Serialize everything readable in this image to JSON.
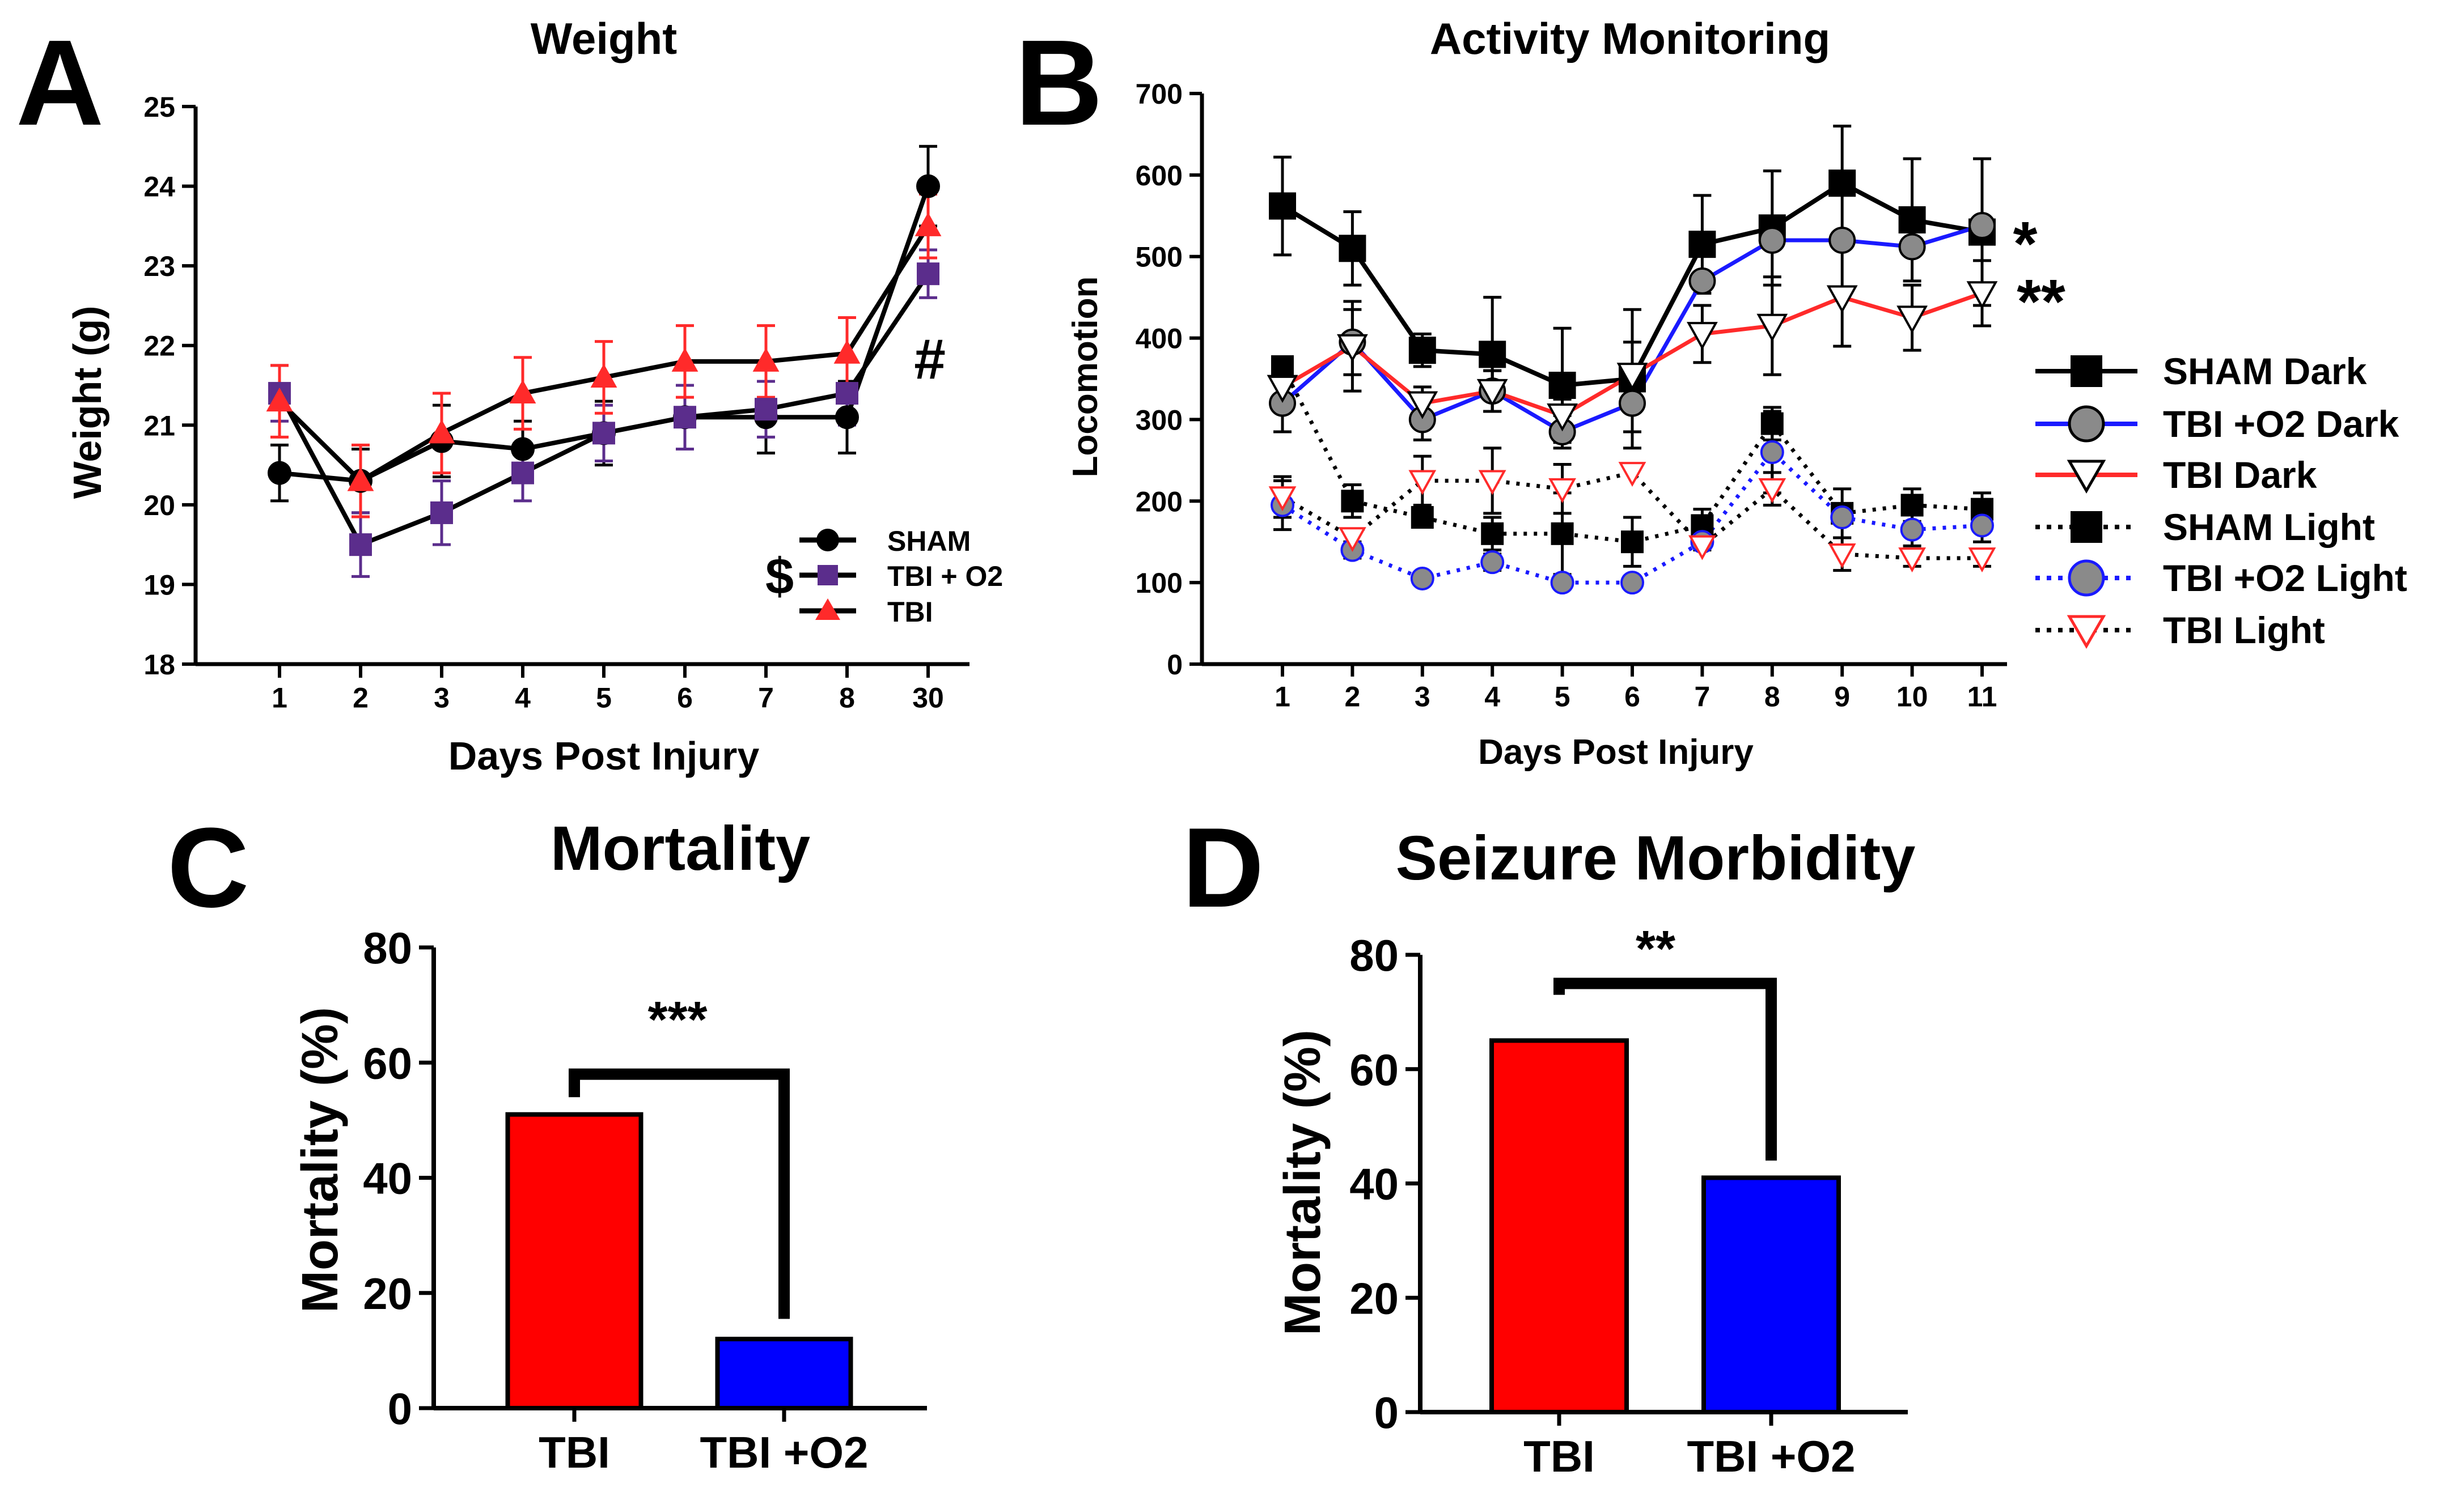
{
  "panels": {
    "A": {
      "letter": "A",
      "title": "Weight",
      "xlabel": "Days Post Injury",
      "ylabel": "Weight (g)",
      "annotations": {
        "dollar": "$",
        "hash": "#"
      },
      "legend": [
        "SHAM",
        "TBI + O2",
        "TBI"
      ]
    },
    "B": {
      "letter": "B",
      "title": "Activity Monitoring",
      "xlabel": "Days Post Injury",
      "ylabel": "Locomotion",
      "annotations": {
        "star1": "*",
        "star2": "**"
      },
      "legend": [
        "SHAM Dark",
        "TBI +O2 Dark",
        "TBI Dark",
        "SHAM Light",
        "TBI +O2 Light",
        "TBI Light"
      ]
    },
    "C": {
      "letter": "C",
      "title": "Mortality",
      "ylabel": "Mortality (%)",
      "significance": "***"
    },
    "D": {
      "letter": "D",
      "title": "Seizure Morbidity",
      "ylabel": "Mortality (%)",
      "significance": "**"
    }
  },
  "colors": {
    "sham": "#000000",
    "tbi_o2_purple": "#5b2d8c",
    "tbi_red": "#ff2a2a",
    "tbi_o2_blue": "#1a1aff",
    "marker_gray": "#8a8a8a",
    "bar_red": "#ff0000",
    "bar_blue": "#0000ff"
  },
  "chart_data": [
    {
      "type": "line",
      "title": "Weight",
      "xlabel": "Days Post Injury",
      "ylabel": "Weight (g)",
      "categories": [
        "1",
        "2",
        "3",
        "4",
        "5",
        "6",
        "7",
        "8",
        "30"
      ],
      "ylim": [
        18,
        25
      ],
      "yticks": [
        18,
        19,
        20,
        21,
        22,
        23,
        24,
        25
      ],
      "legend_position": "bottom-right",
      "series": [
        {
          "name": "SHAM",
          "values": [
            20.4,
            20.3,
            20.8,
            20.7,
            20.9,
            21.1,
            21.1,
            21.1,
            24.0
          ],
          "errors": [
            0.35,
            0.4,
            0.45,
            0.35,
            0.4,
            0.4,
            0.45,
            0.45,
            0.5
          ]
        },
        {
          "name": "TBI + O2",
          "values": [
            21.4,
            19.5,
            19.9,
            20.4,
            20.9,
            21.1,
            21.2,
            21.4,
            22.9
          ],
          "errors": [
            0.35,
            0.4,
            0.4,
            0.35,
            0.35,
            0.4,
            0.35,
            0.4,
            0.3
          ]
        },
        {
          "name": "TBI",
          "values": [
            21.3,
            20.3,
            20.9,
            21.4,
            21.6,
            21.8,
            21.8,
            21.9,
            23.5
          ],
          "errors": [
            0.45,
            0.45,
            0.5,
            0.45,
            0.45,
            0.45,
            0.45,
            0.45,
            0.4
          ]
        }
      ]
    },
    {
      "type": "line",
      "title": "Activity Monitoring",
      "xlabel": "Days Post Injury",
      "ylabel": "Locomotion",
      "categories": [
        "1",
        "2",
        "3",
        "4",
        "5",
        "6",
        "7",
        "8",
        "9",
        "10",
        "11"
      ],
      "ylim": [
        0,
        700
      ],
      "yticks": [
        0,
        100,
        200,
        300,
        400,
        500,
        600,
        700
      ],
      "legend_position": "right",
      "series": [
        {
          "name": "SHAM Dark",
          "values": [
            562,
            510,
            385,
            380,
            342,
            350,
            515,
            535,
            590,
            545,
            530
          ],
          "errors": [
            60,
            45,
            20,
            70,
            70,
            85,
            60,
            70,
            70,
            75,
            90
          ]
        },
        {
          "name": "TBI +O2 Dark",
          "values": [
            320,
            395,
            300,
            335,
            285,
            320,
            470,
            520,
            520,
            512,
            538
          ],
          "errors": [
            35,
            40,
            25,
            25,
            20,
            35,
            0,
            0,
            0,
            0,
            0
          ]
        },
        {
          "name": "TBI Dark",
          "values": [
            340,
            390,
            320,
            335,
            305,
            355,
            405,
            415,
            450,
            425,
            455
          ],
          "errors": [
            25,
            55,
            20,
            25,
            20,
            40,
            35,
            60,
            60,
            40,
            40
          ]
        },
        {
          "name": "SHAM Light",
          "values": [
            365,
            200,
            180,
            160,
            160,
            150,
            170,
            295,
            185,
            195,
            190
          ],
          "errors": [
            0,
            20,
            0,
            20,
            50,
            30,
            20,
            20,
            30,
            20,
            20
          ]
        },
        {
          "name": "TBI +O2 Light",
          "values": [
            195,
            140,
            105,
            125,
            100,
            100,
            150,
            260,
            180,
            165,
            170
          ],
          "errors": [
            30,
            10,
            0,
            10,
            0,
            0,
            10,
            50,
            0,
            20,
            20
          ]
        },
        {
          "name": "TBI Light",
          "values": [
            205,
            155,
            225,
            225,
            215,
            235,
            145,
            215,
            135,
            130,
            130
          ],
          "errors": [
            25,
            10,
            30,
            40,
            30,
            0,
            0,
            20,
            20,
            10,
            10
          ]
        }
      ]
    },
    {
      "type": "bar",
      "title": "Mortality",
      "xlabel": "",
      "ylabel": "Mortality (%)",
      "categories": [
        "TBI",
        "TBI +O2"
      ],
      "values": [
        51,
        12
      ],
      "ylim": [
        0,
        80
      ],
      "yticks": [
        0,
        20,
        40,
        60,
        80
      ]
    },
    {
      "type": "bar",
      "title": "Seizure Morbidity",
      "xlabel": "",
      "ylabel": "Mortality (%)",
      "categories": [
        "TBI",
        "TBI +O2"
      ],
      "values": [
        65,
        41
      ],
      "ylim": [
        0,
        80
      ],
      "yticks": [
        0,
        20,
        40,
        60,
        80
      ]
    }
  ]
}
